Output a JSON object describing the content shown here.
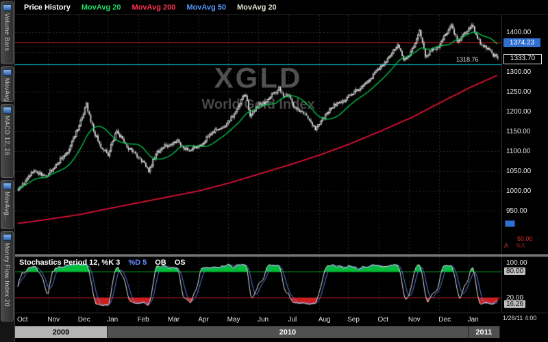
{
  "legend": {
    "title": "Price History",
    "items": [
      {
        "label": "MovAvg 20",
        "color": "#22dd66"
      },
      {
        "label": "MovAvg 200",
        "color": "#ff3355"
      },
      {
        "label": "MovAvg 50",
        "color": "#5599ff"
      },
      {
        "label": "MovAvg 20",
        "color": "#e6e6cf"
      }
    ]
  },
  "sidebar": {
    "tabs": [
      {
        "label": "Volume Bars"
      },
      {
        "label": "MovAvg..."
      },
      {
        "label": "MACD 12, 26"
      },
      {
        "label": "MovAvg..."
      },
      {
        "label": "Money Flow Index 20"
      }
    ]
  },
  "watermark": {
    "symbol": "XGLD",
    "name": "World Gold Index"
  },
  "price_axis": {
    "ticks": [
      {
        "label": "1400.00",
        "value": 1400
      },
      {
        "label": "1300.00",
        "value": 1300
      },
      {
        "label": "1250.00",
        "value": 1250
      },
      {
        "label": "1200.00",
        "value": 1200
      },
      {
        "label": "1150.00",
        "value": 1150
      },
      {
        "label": "1100.00",
        "value": 1100
      },
      {
        "label": "1050.00",
        "value": 1050
      },
      {
        "label": "1000.00",
        "value": 1000
      },
      {
        "label": "950.00",
        "value": 950
      }
    ],
    "alert_box": {
      "label": "1374.23",
      "value": 1374.23,
      "color": "#2f6fd0"
    },
    "last_box": {
      "label": "1333.70",
      "value": 1333.7
    },
    "cyan_level": {
      "label": "1318.76",
      "value": 1318.76,
      "color": "#00c4c4"
    },
    "extra": {
      "v50": "50.00",
      "a": "A",
      "px": "%X"
    }
  },
  "stoch": {
    "title": "Stochastics Period 12, %K 3",
    "d_label": "%D 5",
    "ob_label": "OB",
    "os_label": "OS",
    "axis": [
      {
        "label": "100.00",
        "value": 100,
        "boxed": false
      },
      {
        "label": "80.00",
        "value": 80,
        "boxed": true
      },
      {
        "label": "20.00",
        "value": 20,
        "boxed": false
      },
      {
        "label": "16.26",
        "value": 16.26,
        "boxed": true
      }
    ]
  },
  "time_axis": {
    "months": [
      "Oct",
      "Nov",
      "Dec",
      "Jan",
      "Feb",
      "Mar",
      "Apr",
      "May",
      "Jun",
      "Jul",
      "Aug",
      "Sep",
      "Oct",
      "Nov",
      "Dec",
      "Jan"
    ],
    "years": [
      {
        "label": "2009",
        "start_month": 0,
        "end_month": 3,
        "bg": "#b4b4b4",
        "fg": "#000000"
      },
      {
        "label": "2010",
        "start_month": 3,
        "end_month": 15,
        "bg": "#505050",
        "fg": "#ffffff"
      },
      {
        "label": "2011",
        "start_month": 15,
        "end_month": 16,
        "bg": "#505050",
        "fg": "#ffffff"
      }
    ],
    "timestamp": "1/26/11 4:00"
  },
  "chart_data": {
    "type": "candlestick",
    "symbol": "XGLD",
    "title": "World Gold Index",
    "n_bars": 332,
    "n_months": 16,
    "ylim": [
      840,
      1443
    ],
    "grid_min": 950,
    "grid_max": 1400,
    "grid_step": 50,
    "levels": {
      "alert_line": 1374.23,
      "cyan_line": 1318.76
    },
    "last_close": 1333.7,
    "close_anchors": [
      [
        0,
        1001
      ],
      [
        10,
        1048
      ],
      [
        20,
        1040
      ],
      [
        25,
        1062
      ],
      [
        35,
        1105
      ],
      [
        43,
        1175
      ],
      [
        47,
        1218
      ],
      [
        52,
        1150
      ],
      [
        58,
        1105
      ],
      [
        62,
        1092
      ],
      [
        65,
        1122
      ],
      [
        68,
        1152
      ],
      [
        75,
        1110
      ],
      [
        83,
        1085
      ],
      [
        88,
        1065
      ],
      [
        90,
        1046
      ],
      [
        95,
        1095
      ],
      [
        100,
        1110
      ],
      [
        104,
        1118
      ],
      [
        110,
        1125
      ],
      [
        117,
        1102
      ],
      [
        125,
        1112
      ],
      [
        128,
        1125
      ],
      [
        135,
        1150
      ],
      [
        142,
        1162
      ],
      [
        146,
        1180
      ],
      [
        150,
        1200
      ],
      [
        155,
        1235
      ],
      [
        157,
        1243
      ],
      [
        160,
        1188
      ],
      [
        165,
        1215
      ],
      [
        170,
        1222
      ],
      [
        175,
        1240
      ],
      [
        180,
        1258
      ],
      [
        183,
        1236
      ],
      [
        187,
        1244
      ],
      [
        190,
        1210
      ],
      [
        195,
        1199
      ],
      [
        200,
        1185
      ],
      [
        205,
        1158
      ],
      [
        208,
        1170
      ],
      [
        212,
        1190
      ],
      [
        218,
        1216
      ],
      [
        225,
        1228
      ],
      [
        229,
        1245
      ],
      [
        233,
        1252
      ],
      [
        240,
        1272
      ],
      [
        246,
        1297
      ],
      [
        250,
        1308
      ],
      [
        253,
        1322
      ],
      [
        258,
        1346
      ],
      [
        262,
        1372
      ],
      [
        266,
        1328
      ],
      [
        270,
        1342
      ],
      [
        272,
        1357
      ],
      [
        276,
        1392
      ],
      [
        277,
        1403
      ],
      [
        281,
        1339
      ],
      [
        285,
        1352
      ],
      [
        290,
        1365
      ],
      [
        293,
        1385
      ],
      [
        296,
        1400
      ],
      [
        299,
        1416
      ],
      [
        303,
        1379
      ],
      [
        306,
        1387
      ],
      [
        310,
        1405
      ],
      [
        313,
        1420
      ],
      [
        314,
        1413
      ],
      [
        317,
        1382
      ],
      [
        320,
        1368
      ],
      [
        324,
        1360
      ],
      [
        327,
        1346
      ],
      [
        330,
        1336
      ],
      [
        331,
        1333.7
      ]
    ],
    "ma200_anchors": [
      [
        0,
        918
      ],
      [
        20,
        928
      ],
      [
        42,
        940
      ],
      [
        62,
        955
      ],
      [
        83,
        970
      ],
      [
        104,
        985
      ],
      [
        125,
        1000
      ],
      [
        146,
        1020
      ],
      [
        166,
        1042
      ],
      [
        187,
        1065
      ],
      [
        208,
        1090
      ],
      [
        229,
        1118
      ],
      [
        250,
        1150
      ],
      [
        272,
        1185
      ],
      [
        293,
        1225
      ],
      [
        313,
        1262
      ],
      [
        331,
        1291
      ]
    ],
    "ma20_window": 20,
    "stochastics": {
      "period": 12,
      "k_smooth": 3,
      "d_smooth": 5,
      "ob": 80,
      "os": 20,
      "last": 16.26
    },
    "colors": {
      "candle": "#e8e8e8",
      "ma20": "#00c24a",
      "ma200": "#e01038",
      "alert_line": "#c42020",
      "cyan_line": "#00c4c4",
      "grid": "#2d2d2d",
      "stoch_k": "#e8e8e8",
      "stoch_d": "#5b7fe8",
      "ob_line": "#00b020",
      "os_line": "#cc2020",
      "fill_ob": "#00be3c",
      "fill_os": "#cc2020"
    }
  }
}
